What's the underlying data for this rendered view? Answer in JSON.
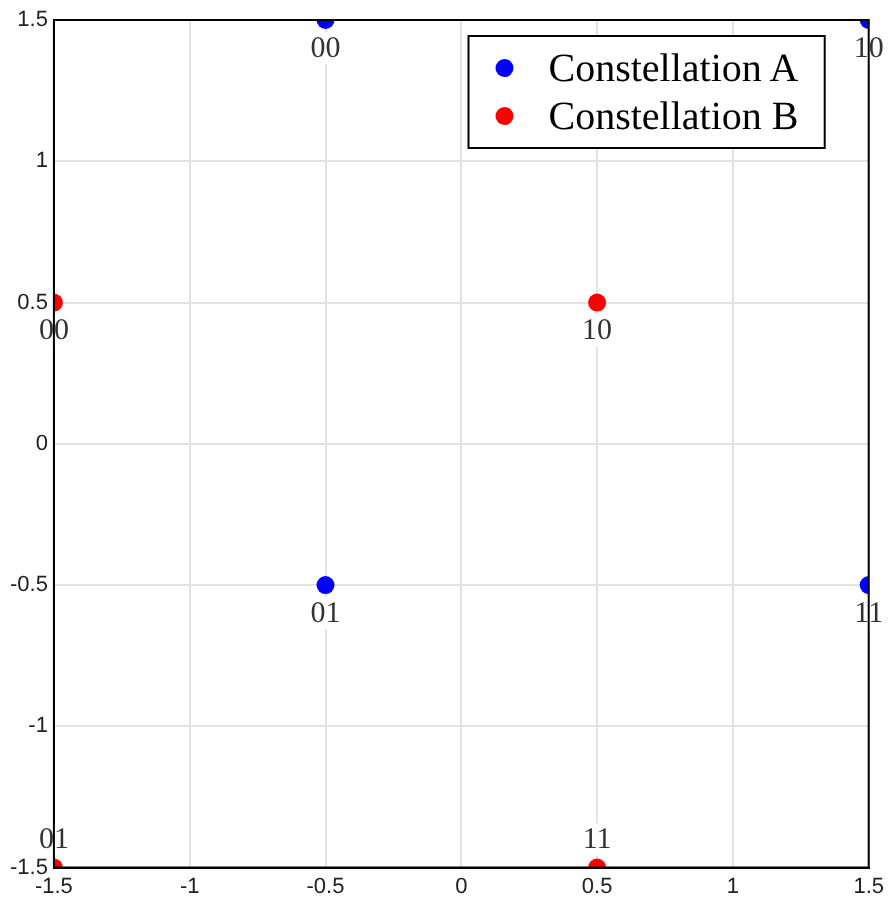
{
  "chart_data": {
    "type": "scatter",
    "series": [
      {
        "name": "Constellation A",
        "color": "#0000ff",
        "x": [
          -0.5,
          1.5,
          -0.5,
          1.5
        ],
        "values": [
          1.5,
          1.5,
          -0.5,
          -0.5
        ]
      },
      {
        "name": "Constellation B",
        "color": "#ff0000",
        "x": [
          -1.5,
          0.5,
          -1.5,
          0.5
        ],
        "values": [
          0.5,
          0.5,
          -1.5,
          -1.5
        ]
      }
    ],
    "annotations": [
      {
        "text": "00",
        "x": -0.5,
        "y": 1.5
      },
      {
        "text": "10",
        "x": 1.5,
        "y": 1.5
      },
      {
        "text": "01",
        "x": -0.5,
        "y": -0.5
      },
      {
        "text": "11",
        "x": 1.5,
        "y": -0.5
      },
      {
        "text": "00",
        "x": -1.5,
        "y": 0.5
      },
      {
        "text": "10",
        "x": 0.5,
        "y": 0.5
      },
      {
        "text": "01",
        "x": -1.5,
        "y": -1.5
      },
      {
        "text": "11",
        "x": 0.5,
        "y": -1.5
      }
    ],
    "xlim": [
      -1.5,
      1.5
    ],
    "ylim": [
      -1.5,
      1.5
    ],
    "xticks": [
      -1.5,
      -1,
      -0.5,
      0,
      0.5,
      1,
      1.5
    ],
    "yticks": [
      -1.5,
      -1,
      -0.5,
      0,
      0.5,
      1,
      1.5
    ],
    "grid": true,
    "legend": "top right",
    "marker": "circle"
  }
}
